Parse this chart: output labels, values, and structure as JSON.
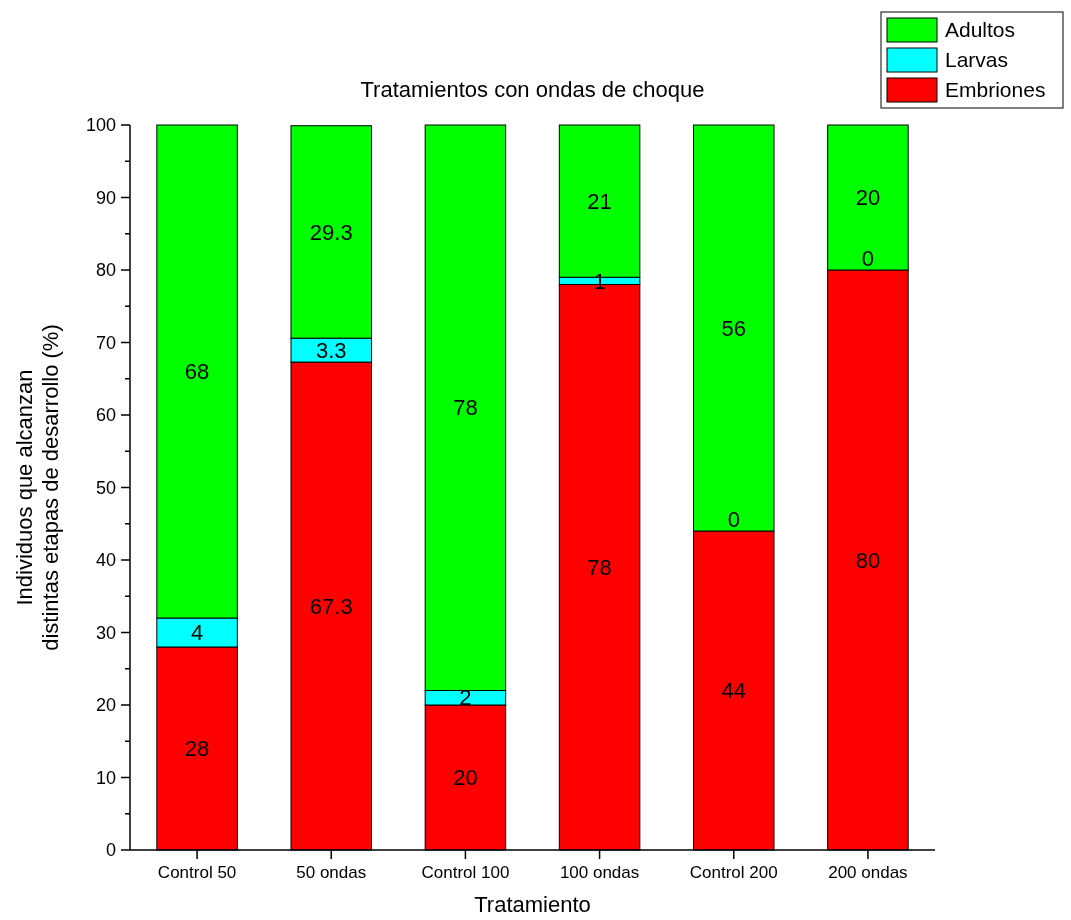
{
  "chart_data": {
    "type": "bar",
    "stacked": true,
    "title": "Tratamientos con ondas de choque",
    "xlabel": "Tratamiento",
    "ylabel": "Individuos que alcanzan\ndistintas etapas de desarrollo (%)",
    "categories": [
      "Control 50",
      "50 ondas",
      "Control 100",
      "100 ondas",
      "Control 200",
      "200 ondas"
    ],
    "series": [
      {
        "name": "Embriones",
        "color": "#ff0000",
        "values": [
          28,
          67.3,
          20,
          78,
          44,
          80
        ],
        "value_labels": [
          "28",
          "67.3",
          "20",
          "78",
          "44",
          "80"
        ]
      },
      {
        "name": "Larvas",
        "color": "#00ffff",
        "values": [
          4,
          3.3,
          2,
          1,
          0,
          0
        ],
        "value_labels": [
          "4",
          "3.3",
          "2",
          "1",
          null,
          null
        ]
      },
      {
        "name": "Adultos",
        "color": "#00ff00",
        "values": [
          68,
          29.3,
          78,
          21,
          56,
          20
        ],
        "value_labels": [
          "68",
          "29.3",
          "78",
          "21",
          "56",
          "20"
        ]
      }
    ],
    "ylim": [
      0,
      100
    ],
    "yticks": [
      0,
      {
        "value": 5,
        "label": null
      },
      10,
      {
        "value": 15,
        "label": null
      },
      20,
      {
        "value": 25,
        "label": null
      },
      30,
      {
        "value": 35,
        "label": null
      },
      40,
      {
        "value": 45,
        "label": null
      },
      50,
      {
        "value": 55,
        "label": null
      },
      60,
      {
        "value": 65,
        "label": null
      },
      70,
      {
        "value": 75,
        "label": null
      },
      80,
      {
        "value": 85,
        "label": null
      },
      90,
      {
        "value": 95,
        "label": null
      },
      100
    ],
    "annotations": [
      {
        "text": "0",
        "x": "Control 200",
        "y": 44
      },
      {
        "text": "0",
        "x": "200 ondas",
        "y": 80
      }
    ],
    "legend": "top right",
    "grid": false
  }
}
